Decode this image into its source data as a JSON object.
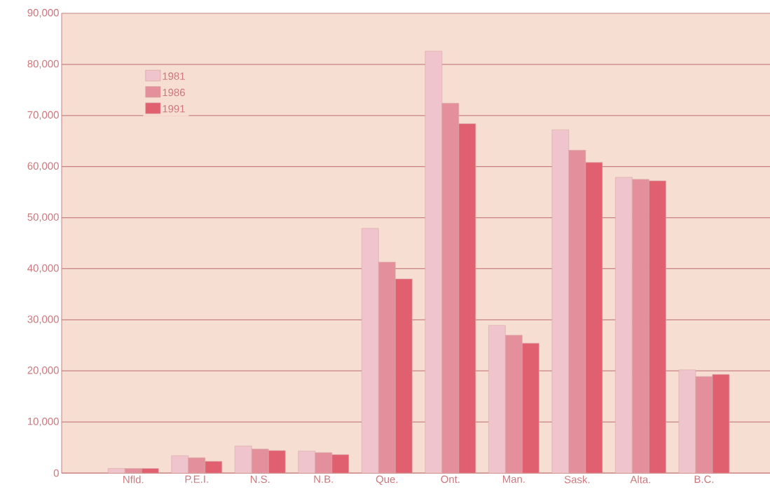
{
  "chart_data": {
    "type": "bar",
    "categories": [
      "Nfld.",
      "P.E.I.",
      "N.S.",
      "N.B.",
      "Que.",
      "Ont.",
      "Man.",
      "Sask.",
      "Alta.",
      "B.C."
    ],
    "series": [
      {
        "name": "1981",
        "color": "#f0c4cc",
        "values": [
          900,
          3400,
          5300,
          4300,
          47900,
          82600,
          28900,
          67200,
          57900,
          20200
        ]
      },
      {
        "name": "1986",
        "color": "#e3909c",
        "values": [
          900,
          3000,
          4700,
          4000,
          41300,
          72400,
          27000,
          63200,
          57500,
          18900
        ]
      },
      {
        "name": "1991",
        "color": "#e0606f",
        "values": [
          900,
          2300,
          4400,
          3600,
          38000,
          68400,
          25400,
          60800,
          57200,
          19300
        ]
      }
    ],
    "ylim": [
      0,
      90000
    ],
    "yticks": [
      0,
      {
        "value": 10000,
        "label": "10,000"
      },
      {
        "value": 20000,
        "label": "20,000"
      },
      {
        "value": 30000,
        "label": "30,000"
      },
      {
        "value": 40000,
        "label": "40,000"
      },
      {
        "value": 50000,
        "label": "50,000"
      },
      {
        "value": 60000,
        "label": "60,000"
      },
      {
        "value": 70000,
        "label": "70,000"
      },
      {
        "value": 80000,
        "label": "80,000"
      },
      {
        "value": 90000,
        "label": "90,000"
      }
    ],
    "grid": "y",
    "legend": "top left"
  }
}
